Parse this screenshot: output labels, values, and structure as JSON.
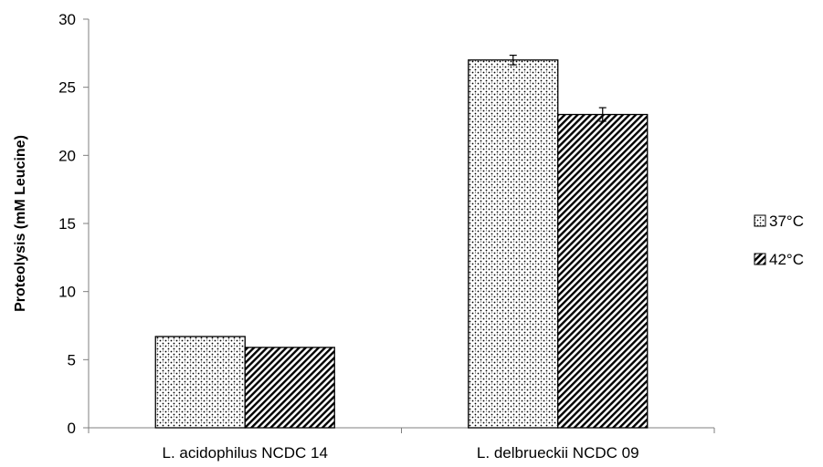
{
  "chart_data": {
    "type": "bar",
    "categories": [
      "L. acidophilus NCDC 14",
      "L. delbrueckii NCDC 09"
    ],
    "series": [
      {
        "name": "37°C",
        "values": [
          6.7,
          27.0
        ],
        "error": [
          0.0,
          0.35
        ],
        "pattern": "dots"
      },
      {
        "name": "42°C",
        "values": [
          5.9,
          23.0
        ],
        "error": [
          0.0,
          0.5
        ],
        "pattern": "diagonal-hatch"
      }
    ],
    "title": "",
    "xlabel": "",
    "ylabel": "Proteolysis (mM Leucine)",
    "ylim": [
      0,
      30
    ],
    "yticks": [
      "0",
      "5",
      "10",
      "15",
      "20",
      "25",
      "30"
    ],
    "grid": false,
    "legend_position": "right",
    "colors": {
      "bar_stroke": "#000000",
      "pattern_ink": "#000000",
      "background": "#ffffff"
    }
  }
}
